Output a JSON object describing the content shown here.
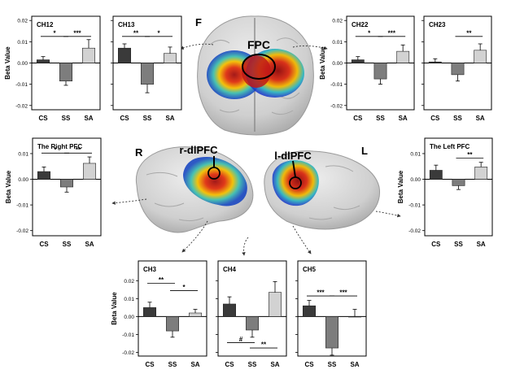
{
  "colors": {
    "CS": "#3a3a3a",
    "SS": "#7d7d7d",
    "SA": "#d2d2d2",
    "brain": "#d6d6d6",
    "brain_shade": "#b5b5b5"
  },
  "brain_labels": {
    "front": "F",
    "fpc": "FPC",
    "right": "R",
    "left": "L",
    "r_dlpfc": "r-dlPFC",
    "l_dlpfc": "l-dlPFC"
  },
  "ylabel": "Beta Value",
  "tick_labels": [
    "-0.02",
    "-0.01",
    "0.00",
    "0.01",
    "0.02"
  ],
  "chart_data": [
    {
      "id": "ch12",
      "type": "bar",
      "title": "CH12",
      "categories": [
        "CS",
        "SS",
        "SA"
      ],
      "values": [
        0.0015,
        -0.0085,
        0.007
      ],
      "errors": [
        0.0015,
        0.002,
        0.004
      ],
      "ylim": [
        -0.022,
        0.022
      ],
      "ylabel": "Beta Value",
      "sig": [
        {
          "a": 0,
          "b": 1,
          "y": 0.0125,
          "label": "*"
        },
        {
          "a": 1,
          "b": 2,
          "y": 0.0125,
          "label": "***"
        }
      ]
    },
    {
      "id": "ch13",
      "type": "bar",
      "title": "CH13",
      "categories": [
        "CS",
        "SS",
        "SA"
      ],
      "values": [
        0.007,
        -0.01,
        0.0045
      ],
      "errors": [
        0.002,
        0.004,
        0.003
      ],
      "ylim": [
        -0.022,
        0.022
      ],
      "ylabel": "",
      "sig": [
        {
          "a": 0,
          "b": 1,
          "y": 0.0125,
          "label": "**"
        },
        {
          "a": 1,
          "b": 2,
          "y": 0.0125,
          "label": "*"
        }
      ]
    },
    {
      "id": "ch22",
      "type": "bar",
      "title": "CH22",
      "categories": [
        "CS",
        "SS",
        "SA"
      ],
      "values": [
        0.0015,
        -0.0075,
        0.0055
      ],
      "errors": [
        0.0015,
        0.0025,
        0.003
      ],
      "ylim": [
        -0.022,
        0.022
      ],
      "ylabel": "Beta Value",
      "sig": [
        {
          "a": 0,
          "b": 1,
          "y": 0.0125,
          "label": "*"
        },
        {
          "a": 1,
          "b": 2,
          "y": 0.0125,
          "label": "***"
        }
      ]
    },
    {
      "id": "ch23",
      "type": "bar",
      "title": "CH23",
      "categories": [
        "CS",
        "SS",
        "SA"
      ],
      "values": [
        0.0005,
        -0.0055,
        0.006
      ],
      "errors": [
        0.0015,
        0.003,
        0.003
      ],
      "ylim": [
        -0.022,
        0.022
      ],
      "ylabel": "",
      "sig": [
        {
          "a": 1,
          "b": 2,
          "y": 0.0125,
          "label": "**"
        }
      ]
    },
    {
      "id": "rpfc",
      "type": "bar",
      "title": "The Right PFC",
      "categories": [
        "CS",
        "SS",
        "SA"
      ],
      "values": [
        0.003,
        -0.003,
        0.0062
      ],
      "errors": [
        0.0018,
        0.002,
        0.0025
      ],
      "ylim": [
        -0.022,
        0.016
      ],
      "ylabel": "Beta Value",
      "sig": [
        {
          "a": 0,
          "b": 1,
          "y": 0.0102,
          "label": "*"
        },
        {
          "a": 1,
          "b": 2,
          "y": 0.0102,
          "label": "**"
        }
      ]
    },
    {
      "id": "lpfc",
      "type": "bar",
      "title": "The Left PFC",
      "categories": [
        "CS",
        "SS",
        "SA"
      ],
      "values": [
        0.0035,
        -0.0025,
        0.0048
      ],
      "errors": [
        0.002,
        0.0015,
        0.0018
      ],
      "ylim": [
        -0.022,
        0.016
      ],
      "ylabel": "Beta Value",
      "sig": [
        {
          "a": 1,
          "b": 2,
          "y": 0.0082,
          "label": "**"
        }
      ]
    },
    {
      "id": "ch3",
      "type": "bar",
      "title": "CH3",
      "categories": [
        "CS",
        "SS",
        "SA"
      ],
      "values": [
        0.005,
        -0.008,
        0.002
      ],
      "errors": [
        0.003,
        0.0035,
        0.002
      ],
      "ylim": [
        -0.022,
        0.031
      ],
      "ylabel": "Beta Value",
      "sig": [
        {
          "a": 0,
          "b": 1,
          "y": 0.0185,
          "label": "**"
        },
        {
          "a": 1,
          "b": 2,
          "y": 0.0145,
          "label": "*"
        }
      ]
    },
    {
      "id": "ch4",
      "type": "bar",
      "title": "CH4",
      "categories": [
        "CS",
        "SS",
        "SA"
      ],
      "values": [
        0.007,
        -0.0075,
        0.0135
      ],
      "errors": [
        0.004,
        0.004,
        0.006
      ],
      "ylim": [
        -0.022,
        0.031
      ],
      "ylabel": "",
      "sig": [
        {
          "a": 0,
          "b": 1,
          "y": -0.0145,
          "label": "#"
        },
        {
          "a": 1,
          "b": 2,
          "y": -0.0175,
          "label": "**"
        }
      ]
    },
    {
      "id": "ch5",
      "type": "bar",
      "title": "CH5",
      "categories": [
        "CS",
        "SS",
        "SA"
      ],
      "values": [
        0.006,
        -0.0175,
        0.0
      ],
      "errors": [
        0.003,
        0.004,
        0.004
      ],
      "ylim": [
        -0.022,
        0.031
      ],
      "ylabel": "",
      "sig": [
        {
          "a": 0,
          "b": 1,
          "y": 0.0115,
          "label": "***"
        },
        {
          "a": 1,
          "b": 2,
          "y": 0.0115,
          "label": "***"
        }
      ]
    }
  ]
}
